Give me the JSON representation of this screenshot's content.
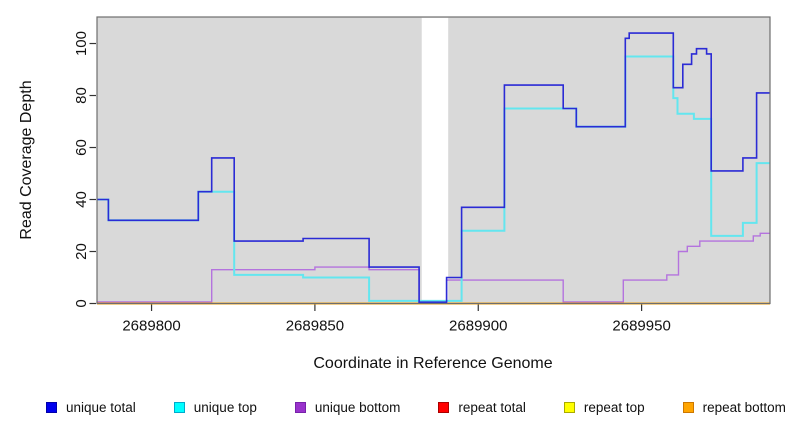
{
  "figure": {
    "x_axis_title": "Coordinate in Reference Genome",
    "y_axis_title": "Read Coverage Depth"
  },
  "chart_data": {
    "type": "line",
    "subtype": "step-after",
    "title": "",
    "xlabel": "Coordinate in Reference Genome",
    "ylabel": "Read Coverage Depth",
    "x_domain": [
      2689783.3,
      2689989.3
    ],
    "y_domain": [
      0,
      110.2
    ],
    "x_ticks": [
      2689800,
      2689850,
      2689900,
      2689950
    ],
    "x_tick_labels": [
      "2689800",
      "2689850",
      "2689900",
      "2689950"
    ],
    "y_ticks": [
      0,
      20,
      40,
      60,
      80,
      100
    ],
    "y_tick_labels": [
      "0",
      "20",
      "40",
      "60",
      "80",
      "100"
    ],
    "grid": false,
    "plot_background": "#D9D9D9",
    "gap_region": {
      "x0": 2689882.7,
      "x1": 2689890.8,
      "color": "#FFFFFF"
    },
    "border_color": "#6e6e6e",
    "tick_color": "#333333",
    "label_color": "#111111",
    "legend_position": "bottom",
    "series": [
      {
        "name": "unique bottom",
        "color": "#b473de",
        "width": 1.4,
        "points": [
          [
            2689783.3,
            0.6
          ],
          [
            2689818.4,
            13
          ],
          [
            2689850,
            14
          ],
          [
            2689866.6,
            13
          ],
          [
            2689881.9,
            0.6
          ],
          [
            2689890.3,
            9
          ],
          [
            2689926,
            0.6
          ],
          [
            2689944.4,
            9
          ],
          [
            2689957.7,
            11
          ],
          [
            2689961.3,
            20
          ],
          [
            2689964,
            22
          ],
          [
            2689967.8,
            24
          ],
          [
            2689984.2,
            26
          ],
          [
            2689986.3,
            27
          ]
        ]
      },
      {
        "name": "repeat total",
        "color": "#dd0000",
        "width": 1.6,
        "points": [
          [
            2689783.3,
            0
          ]
        ]
      },
      {
        "name": "repeat top",
        "color": "#ffff00",
        "width": 1.4,
        "points": [
          [
            2689783.3,
            0
          ]
        ]
      },
      {
        "name": "repeat bottom",
        "color": "#ffa500",
        "width": 2.0,
        "points": [
          [
            2689783.3,
            0
          ]
        ]
      },
      {
        "name": "unique top",
        "color": "#63e6ef",
        "width": 2.0,
        "points": [
          [
            2689783.3,
            40
          ],
          [
            2689786.8,
            32
          ],
          [
            2689814.3,
            43
          ],
          [
            2689825.3,
            11
          ],
          [
            2689846.4,
            10
          ],
          [
            2689866.6,
            1
          ],
          [
            2689894.9,
            28
          ],
          [
            2689908,
            75
          ],
          [
            2689930,
            68
          ],
          [
            2689945,
            95
          ],
          [
            2689959.7,
            79
          ],
          [
            2689961,
            73
          ],
          [
            2689966,
            71
          ],
          [
            2689971.3,
            26
          ],
          [
            2689981,
            31
          ],
          [
            2689985.2,
            54
          ]
        ]
      },
      {
        "name": "unique total",
        "color": "#2b2bd5",
        "width": 1.6,
        "points": [
          [
            2689783.3,
            40
          ],
          [
            2689786.8,
            32
          ],
          [
            2689814.3,
            43
          ],
          [
            2689818.4,
            56
          ],
          [
            2689825.3,
            24
          ],
          [
            2689846.4,
            25
          ],
          [
            2689866.6,
            14
          ],
          [
            2689881.9,
            0.5
          ],
          [
            2689890.3,
            10
          ],
          [
            2689894.9,
            37
          ],
          [
            2689908,
            84
          ],
          [
            2689926,
            75
          ],
          [
            2689930,
            68
          ],
          [
            2689945,
            102
          ],
          [
            2689946.2,
            104
          ],
          [
            2689959.7,
            83
          ],
          [
            2689962.6,
            92
          ],
          [
            2689965.3,
            96
          ],
          [
            2689966.8,
            98
          ],
          [
            2689969.9,
            96
          ],
          [
            2689971.3,
            51
          ],
          [
            2689981,
            56
          ],
          [
            2689985.2,
            81
          ]
        ]
      }
    ]
  },
  "legend": {
    "items": [
      {
        "label": "unique total",
        "fill": "#0000ee",
        "border": "#0000aa"
      },
      {
        "label": "unique top",
        "fill": "#00ffff",
        "border": "#00aacc"
      },
      {
        "label": "unique bottom",
        "fill": "#9932cc",
        "border": "#7722aa"
      },
      {
        "label": "repeat total",
        "fill": "#ff0000",
        "border": "#aa0000"
      },
      {
        "label": "repeat top",
        "fill": "#ffff00",
        "border": "#aaaa00"
      },
      {
        "label": "repeat bottom",
        "fill": "#ffa500",
        "border": "#cc7700"
      }
    ]
  }
}
